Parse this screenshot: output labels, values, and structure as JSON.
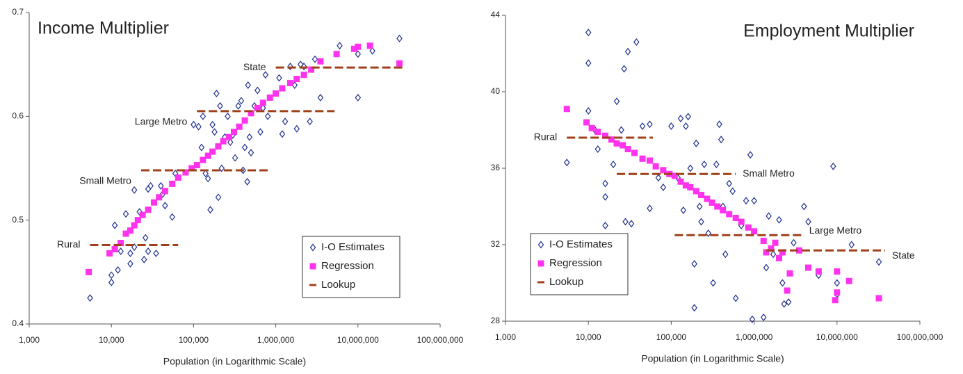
{
  "chart_data": [
    {
      "type": "scatter",
      "title": "Income Multiplier",
      "title_position": "top left",
      "x_label": "Population (in Logarithmic Scale)",
      "x_scale": "log",
      "xlim": [
        1000,
        100000000
      ],
      "xticks": [
        {
          "value": 1000,
          "label": "1,000"
        },
        {
          "value": 10000,
          "label": "10,000"
        },
        {
          "value": 100000,
          "label": "100,000"
        },
        {
          "value": 1000000,
          "label": "1,000,000"
        },
        {
          "value": 10000000,
          "label": "10,000,000"
        },
        {
          "value": 100000000,
          "label": "100,000,000"
        }
      ],
      "ylim": [
        0.4,
        0.7
      ],
      "yticks": [
        0.4,
        0.5,
        0.6,
        0.7
      ],
      "legend": "lower right",
      "series": [
        {
          "name": "I-O Estimates",
          "color": "#1f2f8f",
          "marker": "diamond",
          "x": [
            5500,
            10000,
            10000,
            12000,
            11000,
            13000,
            15000,
            17000,
            17000,
            19000,
            19000,
            22000,
            25000,
            26000,
            28000,
            30000,
            28000,
            35000,
            40000,
            42000,
            45000,
            55000,
            60000,
            100000,
            115000,
            125000,
            130000,
            140000,
            150000,
            160000,
            170000,
            180000,
            190000,
            200000,
            210000,
            220000,
            240000,
            260000,
            280000,
            300000,
            320000,
            350000,
            380000,
            400000,
            420000,
            450000,
            460000,
            480000,
            500000,
            550000,
            600000,
            650000,
            700000,
            750000,
            800000,
            1100000,
            1200000,
            1300000,
            1500000,
            1700000,
            1800000,
            2000000,
            2200000,
            2600000,
            3000000,
            3500000,
            6000000,
            10000000,
            10000000,
            15000000,
            32000000
          ],
          "y": [
            0.425,
            0.44,
            0.447,
            0.452,
            0.495,
            0.47,
            0.506,
            0.458,
            0.468,
            0.474,
            0.529,
            0.508,
            0.462,
            0.483,
            0.53,
            0.533,
            0.47,
            0.468,
            0.533,
            0.525,
            0.514,
            0.503,
            0.545,
            0.592,
            0.59,
            0.57,
            0.6,
            0.545,
            0.54,
            0.51,
            0.592,
            0.585,
            0.622,
            0.522,
            0.61,
            0.55,
            0.58,
            0.6,
            0.575,
            0.582,
            0.56,
            0.61,
            0.615,
            0.548,
            0.57,
            0.537,
            0.63,
            0.58,
            0.565,
            0.61,
            0.625,
            0.585,
            0.608,
            0.64,
            0.6,
            0.637,
            0.583,
            0.595,
            0.648,
            0.63,
            0.588,
            0.65,
            0.648,
            0.595,
            0.655,
            0.618,
            0.668,
            0.66,
            0.618,
            0.663,
            0.675
          ]
        },
        {
          "name": "Regression",
          "color": "#ff33ee",
          "marker": "square",
          "x": [
            5300,
            9500,
            11000,
            13000,
            15000,
            17000,
            19000,
            21000,
            24000,
            28000,
            33000,
            38000,
            45000,
            55000,
            65000,
            80000,
            95000,
            110000,
            130000,
            150000,
            170000,
            200000,
            230000,
            270000,
            310000,
            360000,
            420000,
            500000,
            600000,
            700000,
            850000,
            1000000,
            1200000,
            1500000,
            1800000,
            2200000,
            2700000,
            3500000,
            5500000,
            9000000,
            10000000,
            14000000,
            32000000
          ],
          "y": [
            0.45,
            0.468,
            0.472,
            0.478,
            0.487,
            0.49,
            0.495,
            0.5,
            0.505,
            0.51,
            0.517,
            0.522,
            0.528,
            0.535,
            0.541,
            0.546,
            0.55,
            0.553,
            0.558,
            0.562,
            0.566,
            0.571,
            0.576,
            0.58,
            0.585,
            0.59,
            0.596,
            0.603,
            0.608,
            0.613,
            0.618,
            0.622,
            0.627,
            0.632,
            0.636,
            0.64,
            0.645,
            0.653,
            0.66,
            0.665,
            0.667,
            0.668,
            0.651
          ]
        },
        {
          "name": "Lookup",
          "color": "#a0401a",
          "style": "dashed",
          "segments": [
            {
              "label": "Rural",
              "label_side": "left",
              "x": [
                5500,
                65000
              ],
              "y": 0.476
            },
            {
              "label": "Small Metro",
              "label_side": "left",
              "x": [
                23000,
                820000
              ],
              "y": 0.548
            },
            {
              "label": "Large Metro",
              "label_side": "left",
              "x": [
                110000,
                5200000
              ],
              "y": 0.605
            },
            {
              "label": "State",
              "label_side": "left",
              "x": [
                1000000,
                38000000
              ],
              "y": 0.647
            }
          ]
        }
      ]
    },
    {
      "type": "scatter",
      "title": "Employment Multiplier",
      "title_position": "top right",
      "x_label": "Population (in Logarithmic Scale)",
      "x_scale": "log",
      "xlim": [
        1000,
        100000000
      ],
      "xticks": [
        {
          "value": 1000,
          "label": "1,000"
        },
        {
          "value": 10000,
          "label": "10,000"
        },
        {
          "value": 100000,
          "label": "100,000"
        },
        {
          "value": 1000000,
          "label": "1,000,000"
        },
        {
          "value": 10000000,
          "label": "10,000,000"
        },
        {
          "value": 100000000,
          "label": "100,000,000"
        }
      ],
      "ylim": [
        28,
        44
      ],
      "yticks": [
        28,
        32,
        36,
        40,
        44
      ],
      "legend": "lower left",
      "series": [
        {
          "name": "I-O Estimates",
          "color": "#1f2f8f",
          "marker": "diamond",
          "x": [
            5500,
            10000,
            10000,
            10000,
            12000,
            13000,
            16000,
            16000,
            16000,
            20000,
            22000,
            25000,
            27000,
            28000,
            30000,
            33000,
            38000,
            45000,
            55000,
            55000,
            70000,
            80000,
            100000,
            120000,
            130000,
            140000,
            150000,
            160000,
            170000,
            190000,
            190000,
            200000,
            220000,
            230000,
            250000,
            280000,
            320000,
            350000,
            380000,
            400000,
            420000,
            450000,
            500000,
            550000,
            600000,
            700000,
            800000,
            900000,
            950000,
            1000000,
            1300000,
            1400000,
            1500000,
            1700000,
            2000000,
            2200000,
            2300000,
            2600000,
            3000000,
            4000000,
            4500000,
            6000000,
            9000000,
            10000000,
            10000000,
            15000000,
            32000000
          ],
          "y": [
            36.3,
            43.1,
            41.5,
            39,
            38,
            37,
            35.2,
            34.5,
            33,
            36.2,
            39.5,
            38,
            41.2,
            33.2,
            42.1,
            33.1,
            42.6,
            38.2,
            33.9,
            38.3,
            35.5,
            35,
            38.2,
            35.5,
            38.6,
            33.8,
            38.2,
            38.7,
            36,
            31,
            28.7,
            37.3,
            34,
            33.2,
            36.2,
            32.6,
            30,
            36.2,
            38.3,
            37.5,
            34,
            31.5,
            35.2,
            34.8,
            29.2,
            33,
            34.3,
            36.7,
            28.1,
            34.3,
            28.2,
            30.8,
            33.5,
            31.5,
            33.3,
            30,
            28.9,
            29,
            32.1,
            34,
            33.2,
            30.4,
            36.1,
            30,
            29.4,
            32,
            31.1
          ]
        },
        {
          "name": "Regression",
          "color": "#ff33ee",
          "marker": "square",
          "x": [
            5500,
            9500,
            11000,
            13000,
            16000,
            19000,
            22000,
            26000,
            30000,
            36000,
            45000,
            55000,
            65000,
            80000,
            95000,
            110000,
            130000,
            150000,
            170000,
            200000,
            230000,
            270000,
            310000,
            360000,
            420000,
            500000,
            600000,
            700000,
            850000,
            1000000,
            1300000,
            1400000,
            1600000,
            1800000,
            2000000,
            2200000,
            2500000,
            2700000,
            3500000,
            4500000,
            6000000,
            9500000,
            10000000,
            10000000,
            14000000,
            32000000
          ],
          "y": [
            39.1,
            38.4,
            38.1,
            37.9,
            37.7,
            37.5,
            37.3,
            37.2,
            37,
            36.8,
            36.5,
            36.4,
            36.1,
            35.9,
            35.7,
            35.6,
            35.3,
            35.1,
            35,
            34.8,
            34.6,
            34.4,
            34.2,
            34,
            33.8,
            33.6,
            33.4,
            33.2,
            32.9,
            32.7,
            32.2,
            31.6,
            31.8,
            32.1,
            31.3,
            31.6,
            29.6,
            30.5,
            31.7,
            30.8,
            30.6,
            29.1,
            30.6,
            29.5,
            30.1,
            29.2
          ]
        },
        {
          "name": "Lookup",
          "color": "#a0401a",
          "style": "dashed",
          "segments": [
            {
              "label": "Rural",
              "label_side": "left",
              "x": [
                5500,
                60000
              ],
              "y": 37.6
            },
            {
              "label": "Small Metro",
              "label_side": "right",
              "x": [
                22000,
                600000
              ],
              "y": 35.7
            },
            {
              "label": "Large Metro",
              "label_side": "right",
              "x": [
                110000,
                3800000
              ],
              "y": 32.5
            },
            {
              "label": "State",
              "label_side": "right",
              "x": [
                1400000,
                38000000
              ],
              "y": 31.7
            }
          ]
        }
      ]
    }
  ]
}
